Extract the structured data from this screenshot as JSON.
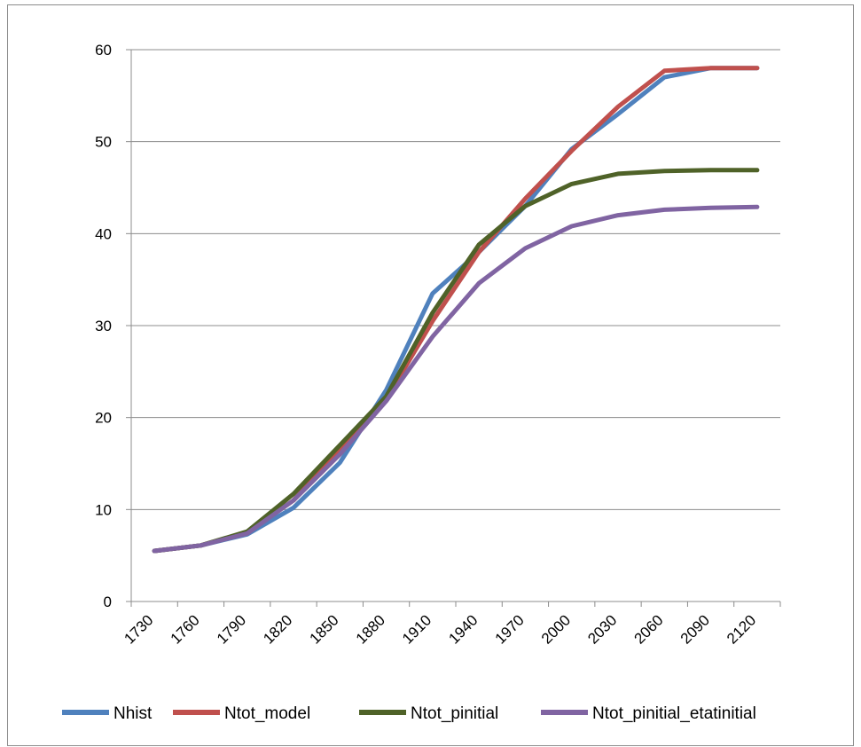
{
  "chart_data": {
    "type": "line",
    "title": "",
    "xlabel": "",
    "ylabel": "",
    "x": [
      1740,
      1770,
      1800,
      1830,
      1860,
      1890,
      1920,
      1950,
      1980,
      2010,
      2040,
      2070,
      2100,
      2130
    ],
    "x_tick_labels": [
      "1730",
      "1760",
      "1790",
      "1820",
      "1850",
      "1880",
      "1910",
      "1940",
      "1970",
      "2000",
      "2030",
      "2060",
      "2090",
      "2120"
    ],
    "x_tick_values": [
      1730,
      1760,
      1790,
      1820,
      1850,
      1880,
      1910,
      1940,
      1970,
      2000,
      2030,
      2060,
      2090,
      2120
    ],
    "xlim": [
      1725,
      2145
    ],
    "ylim": [
      0,
      60
    ],
    "y_ticks": [
      0,
      10,
      20,
      30,
      40,
      50,
      60
    ],
    "grid": true,
    "legend_position": "bottom",
    "series": [
      {
        "name": "Nhist",
        "color": "#4f81bd",
        "values": [
          5.5,
          6.1,
          7.3,
          10.2,
          15.1,
          23.0,
          33.5,
          38.0,
          43.0,
          49.2,
          53.0,
          57.0,
          58.0,
          58.0
        ]
      },
      {
        "name": "Ntot_model",
        "color": "#c0504d",
        "values": [
          5.5,
          6.1,
          7.5,
          11.0,
          16.5,
          22.0,
          30.5,
          38.0,
          43.8,
          49.0,
          53.8,
          57.7,
          58.0,
          58.0
        ]
      },
      {
        "name": "Ntot_pinitial",
        "color": "#4f6228",
        "values": [
          5.5,
          6.1,
          7.6,
          11.7,
          17.0,
          22.3,
          31.4,
          38.8,
          43.0,
          45.4,
          46.5,
          46.8,
          46.9,
          46.9
        ]
      },
      {
        "name": "Ntot_pinitial_etatinitial",
        "color": "#8064a2",
        "values": [
          5.5,
          6.1,
          7.4,
          11.0,
          16.0,
          21.8,
          28.8,
          34.6,
          38.4,
          40.8,
          42.0,
          42.6,
          42.8,
          42.9
        ]
      }
    ]
  }
}
